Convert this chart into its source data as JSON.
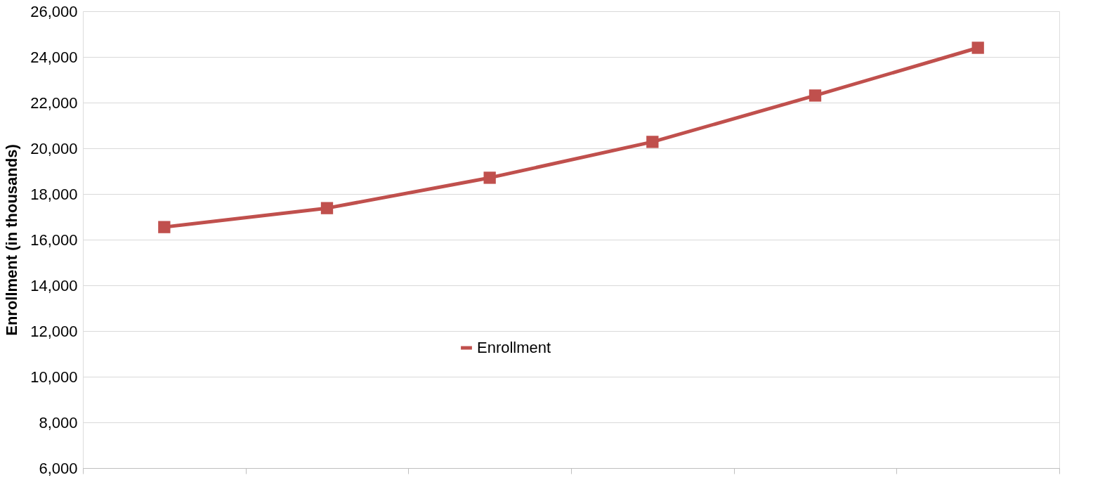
{
  "chart_data": {
    "type": "line",
    "ylabel": "Enrollment (in thousands)",
    "categories": [
      null,
      null,
      null,
      null,
      null,
      null
    ],
    "series": [
      {
        "name": "Enrollment",
        "color": "#c0504d",
        "values": [
          16550,
          17380,
          18710,
          20280,
          22310,
          24400
        ]
      }
    ],
    "ylim": [
      6000,
      26000
    ],
    "yticks": [
      {
        "value": 6000,
        "label": "6,000"
      },
      {
        "value": 8000,
        "label": "8,000"
      },
      {
        "value": 10000,
        "label": "10,000"
      },
      {
        "value": 12000,
        "label": "12,000"
      },
      {
        "value": 14000,
        "label": "14,000"
      },
      {
        "value": 16000,
        "label": "16,000"
      },
      {
        "value": 18000,
        "label": "18,000"
      },
      {
        "value": 20000,
        "label": "20,000"
      },
      {
        "value": 22000,
        "label": "22,000"
      },
      {
        "value": 24000,
        "label": "24,000"
      },
      {
        "value": 26000,
        "label": "26,000"
      }
    ],
    "grid": "y",
    "legend": "bottom",
    "marker": "square",
    "line_style": "solid"
  }
}
